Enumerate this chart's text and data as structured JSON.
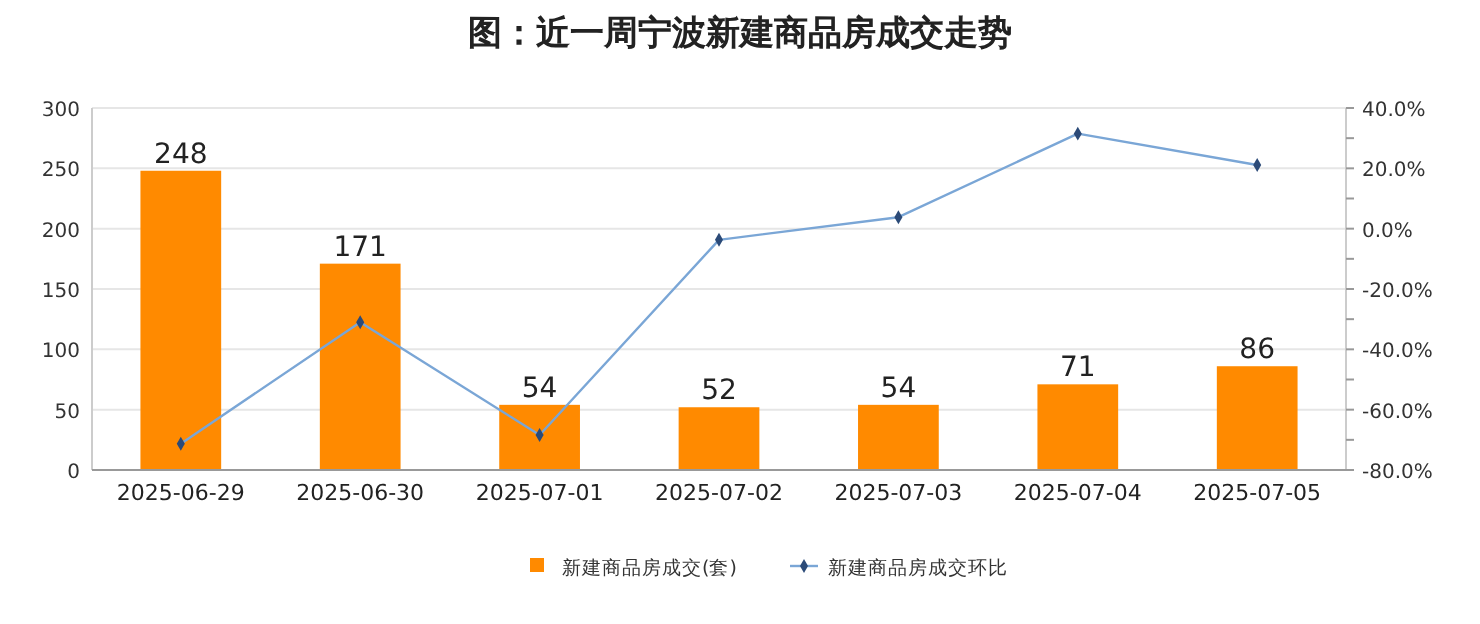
{
  "chart_data": {
    "type": "bar",
    "title": "图：近一周宁波新建商品房成交走势",
    "categories": [
      "2025-06-29",
      "2025-06-30",
      "2025-07-01",
      "2025-07-02",
      "2025-07-03",
      "2025-07-04",
      "2025-07-05"
    ],
    "series": [
      {
        "name": "新建商品房成交(套)",
        "color": "#ff8a00",
        "values": [
          248,
          171,
          54,
          52,
          54,
          71,
          86
        ],
        "value_labels": [
          "248",
          "171",
          "54",
          "52",
          "54",
          "71",
          "86"
        ]
      },
      {
        "name": "新建商品房成交环比",
        "type": "line",
        "axis": "y2",
        "color": "#7aa6d6",
        "values": [
          -71.3,
          -31,
          -68.4,
          -3.7,
          3.8,
          31.5,
          21.1
        ]
      }
    ],
    "marker": "diamond",
    "legend": "bottom",
    "grid": "y",
    "ylim": [
      0,
      300
    ],
    "yticks": [
      0,
      50,
      100,
      150,
      200,
      250,
      300
    ],
    "y2lim": [
      -80,
      40
    ],
    "y2ticks": [
      {
        "value": -80,
        "label": "-80.0%"
      },
      {
        "value": -70,
        "label": null
      },
      {
        "value": -60,
        "label": "-60.0%"
      },
      {
        "value": -50,
        "label": null
      },
      {
        "value": -40,
        "label": "-40.0%"
      },
      {
        "value": -30,
        "label": null
      },
      {
        "value": -20,
        "label": "-20.0%"
      },
      {
        "value": -10,
        "label": null
      },
      {
        "value": 0,
        "label": "0.0%"
      },
      {
        "value": 10,
        "label": null
      },
      {
        "value": 20,
        "label": "20.0%"
      },
      {
        "value": 30,
        "label": null
      },
      {
        "value": 40,
        "label": "40.0%"
      }
    ]
  }
}
